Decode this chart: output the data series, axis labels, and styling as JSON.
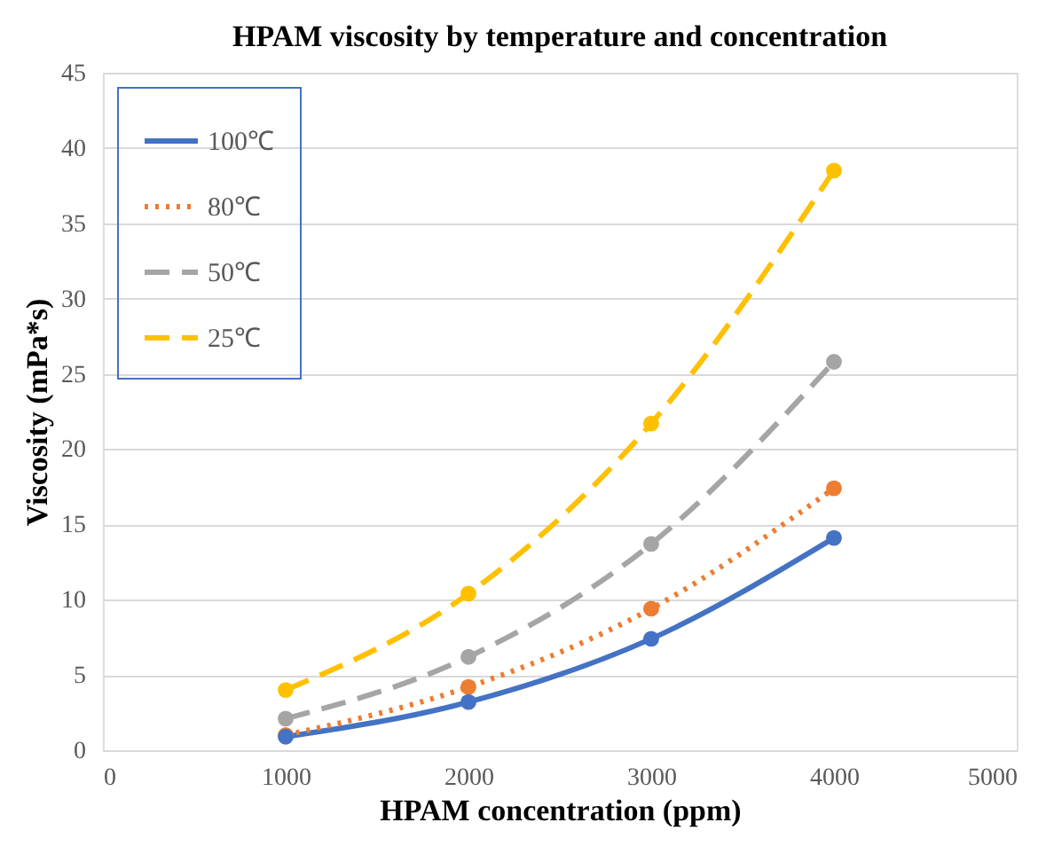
{
  "chart_data": {
    "type": "line",
    "title": "HPAM viscosity by temperature and concentration",
    "xlabel": "HPAM concentration (ppm)",
    "ylabel": "Viscosity (mPa*s)",
    "x": [
      1000,
      2000,
      3000,
      4000
    ],
    "series": [
      {
        "name": "100℃",
        "color": "#4472c4",
        "line_style": "solid",
        "values": [
          0.9,
          3.2,
          7.4,
          14.1
        ]
      },
      {
        "name": "80℃",
        "color": "#ed7d31",
        "line_style": "dotted",
        "values": [
          1.0,
          4.2,
          9.4,
          17.4
        ]
      },
      {
        "name": "50℃",
        "color": "#a5a5a5",
        "line_style": "dashed",
        "values": [
          2.1,
          6.2,
          13.7,
          25.8
        ]
      },
      {
        "name": "25℃",
        "color": "#ffc000",
        "line_style": "dashed",
        "values": [
          4.0,
          10.4,
          21.7,
          38.5
        ]
      }
    ],
    "xlim": [
      0,
      5000
    ],
    "xticks": [
      0,
      1000,
      2000,
      3000,
      4000,
      5000
    ],
    "ylim": [
      0,
      45
    ],
    "yticks": [
      0,
      5,
      10,
      15,
      20,
      25,
      30,
      35,
      40,
      45
    ],
    "grid": "y",
    "legend": "top left",
    "marker": "circle"
  }
}
